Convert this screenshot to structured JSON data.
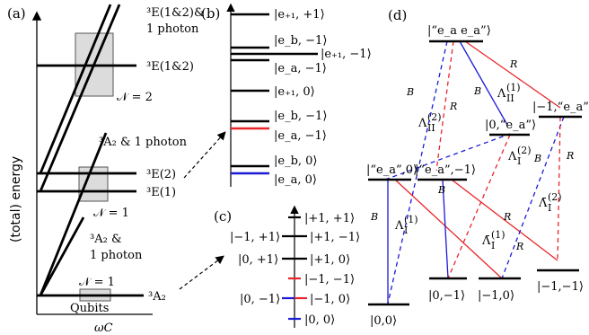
{
  "panels": {
    "a": "(a)",
    "b": "(b)",
    "c": "(c)",
    "d": "(d)"
  },
  "panel_a": {
    "ylabel": "(total) energy",
    "xlabel": "ωC",
    "levels": {
      "e12_photon_line1": "³E(1&2)&",
      "e12_photon_line2": "1 photon",
      "e12": "³E(1&2)",
      "n2": "𝒩 = 2",
      "a2_photon": "³A₂ & 1 photon",
      "e2": "³E(2)",
      "e1": "³E(1)",
      "n1_mid": "𝒩 = 1",
      "a2_photon_b_line1": "³A₂ &",
      "a2_photon_b_line2": "1 photon",
      "n1_low": "𝒩 = 1",
      "qubits": "Qubits",
      "a2": "³A₂"
    }
  },
  "panel_b": {
    "states": {
      "ep_p1": "|e₊₁, +1⟩",
      "eb_m1_top": "|e_b, −1⟩",
      "ep_m1": "|e₊₁, −1⟩",
      "ea_m1_top": "|e_a, −1⟩",
      "ep_0": "|e₊₁, 0⟩",
      "eb_m1": "|e_b, −1⟩",
      "ea_m1": "|e_a, −1⟩",
      "eb_0": "|e_b, 0⟩",
      "ea_0": "|e_a, 0⟩"
    }
  },
  "panel_c": {
    "left": {
      "m1_p1": "|−1, +1⟩",
      "z_p1": "|0, +1⟩",
      "z_m1": "|0, −1⟩"
    },
    "right": {
      "p1_p1": "|+1, +1⟩",
      "p1_m1": "|+1, −1⟩",
      "p1_0": "|+1, 0⟩",
      "m1_m1": "|−1, −1⟩",
      "m1_0": "|−1, 0⟩",
      "z_z": "|0, 0⟩"
    }
  },
  "panel_d": {
    "states": {
      "top": "|“e_a e_a”⟩",
      "z_ea": "|0,“e_a”⟩",
      "m1_ea": "|−1,“e_a”",
      "ea_0": "|“e_a”,0⟩",
      "ea_m1": "|“e_a”,−1⟩",
      "z_m1": "|0,−1⟩",
      "m1_0": "|−1,0⟩",
      "m1_m1": "|−1,−1⟩",
      "z_z": "|0,0⟩"
    },
    "edge_labels": {
      "B": "B",
      "R": "R"
    },
    "lambdas": {
      "l2_II": "Λ(2)II",
      "l1_II": "Λ(1)II",
      "l2_I": "Λ(2)I",
      "l1_I": "Λ(1)I",
      "l1_I_bar": "Λ̄(1)I",
      "l2_I_bar": "Λ̄(2)I"
    }
  },
  "colors": {
    "line": "#000000",
    "red": "#e8262a",
    "blue": "#1a1ad6",
    "box_fill": "#dcdcdc",
    "box_stroke": "#555555"
  }
}
